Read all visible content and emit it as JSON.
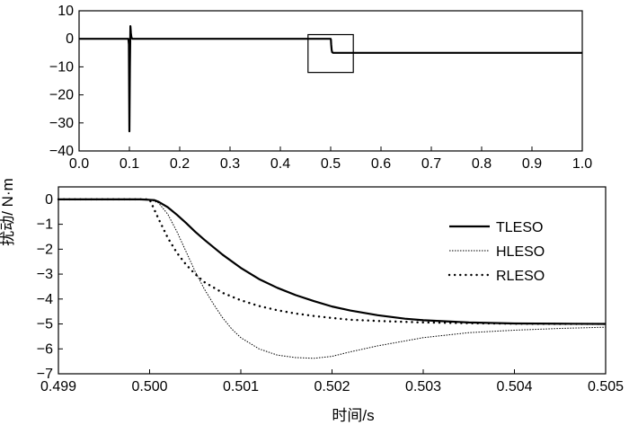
{
  "shared": {
    "ylabel": "扰动/ N·m",
    "xlabel": "时间/s"
  },
  "chart_data": [
    {
      "type": "line",
      "panel": "top",
      "xlim": [
        0.0,
        1.0
      ],
      "ylim": [
        -40,
        10
      ],
      "xticks": [
        "0.0",
        "0.1",
        "0.2",
        "0.3",
        "0.4",
        "0.5",
        "0.6",
        "0.7",
        "0.8",
        "0.9",
        "1.0"
      ],
      "yticks": [
        "10",
        "0",
        "−10",
        "−20",
        "−30",
        "−40"
      ],
      "series": [
        {
          "style": "solid",
          "x": [
            0.0,
            0.098,
            0.099,
            0.1,
            0.101,
            0.102,
            0.103,
            0.104,
            0.106,
            0.11,
            0.45,
            0.5,
            0.5005,
            0.501,
            0.502,
            0.503,
            0.505,
            0.51,
            1.0
          ],
          "y": [
            0,
            0,
            -2,
            -33,
            -10,
            4.5,
            2,
            0.5,
            0,
            0,
            0,
            0,
            -0.3,
            -2,
            -4,
            -4.8,
            -5,
            -5,
            -5
          ]
        }
      ],
      "annotations": [
        {
          "type": "box",
          "x0": 0.455,
          "x1": 0.545,
          "y0": -12,
          "y1": 1.5
        }
      ]
    },
    {
      "type": "line",
      "panel": "bottom",
      "xlim": [
        0.499,
        0.505
      ],
      "ylim": [
        -7,
        0.5
      ],
      "xticks": [
        "0.499",
        "0.500",
        "0.501",
        "0.502",
        "0.503",
        "0.504",
        "0.505"
      ],
      "yticks": [
        "0",
        "−1",
        "−2",
        "−3",
        "−4",
        "−5",
        "−6",
        "−7"
      ],
      "legend": "top-right",
      "series": [
        {
          "name": "TLESO",
          "style": "solid",
          "x": [
            0.499,
            0.4999,
            0.50005,
            0.5001,
            0.5002,
            0.5003,
            0.5004,
            0.5005,
            0.5006,
            0.5008,
            0.501,
            0.5012,
            0.5014,
            0.5016,
            0.5018,
            0.502,
            0.5022,
            0.5025,
            0.5028,
            0.503,
            0.5035,
            0.504,
            0.5045,
            0.505
          ],
          "y": [
            0,
            0,
            -0.03,
            -0.1,
            -0.32,
            -0.62,
            -0.95,
            -1.3,
            -1.62,
            -2.22,
            -2.75,
            -3.2,
            -3.55,
            -3.84,
            -4.08,
            -4.3,
            -4.46,
            -4.65,
            -4.79,
            -4.85,
            -4.94,
            -4.98,
            -4.99,
            -5.0
          ]
        },
        {
          "name": "HLESO",
          "style": "dotted-fine",
          "x": [
            0.499,
            0.5,
            0.5001,
            0.5002,
            0.5003,
            0.5004,
            0.5005,
            0.5006,
            0.5007,
            0.5008,
            0.5009,
            0.501,
            0.5012,
            0.5014,
            0.5016,
            0.5018,
            0.502,
            0.5022,
            0.5025,
            0.503,
            0.5035,
            0.504,
            0.5045,
            0.505
          ],
          "y": [
            0,
            0,
            -0.15,
            -0.6,
            -1.3,
            -2.1,
            -2.9,
            -3.6,
            -4.2,
            -4.75,
            -5.2,
            -5.55,
            -6.0,
            -6.25,
            -6.35,
            -6.38,
            -6.3,
            -6.12,
            -5.88,
            -5.55,
            -5.35,
            -5.25,
            -5.18,
            -5.13
          ]
        },
        {
          "name": "RLESO",
          "style": "dotted-coarse",
          "x": [
            0.499,
            0.5,
            0.5001,
            0.5002,
            0.5003,
            0.5004,
            0.5005,
            0.5006,
            0.5008,
            0.501,
            0.5012,
            0.5014,
            0.5016,
            0.5018,
            0.502,
            0.5022,
            0.5025,
            0.503,
            0.5035,
            0.504,
            0.5045,
            0.505
          ],
          "y": [
            0,
            0,
            -0.8,
            -1.55,
            -2.15,
            -2.62,
            -3.0,
            -3.32,
            -3.75,
            -4.05,
            -4.28,
            -4.45,
            -4.58,
            -4.68,
            -4.76,
            -4.83,
            -4.88,
            -4.94,
            -4.97,
            -4.99,
            -5.0,
            -5.0
          ]
        }
      ]
    }
  ]
}
